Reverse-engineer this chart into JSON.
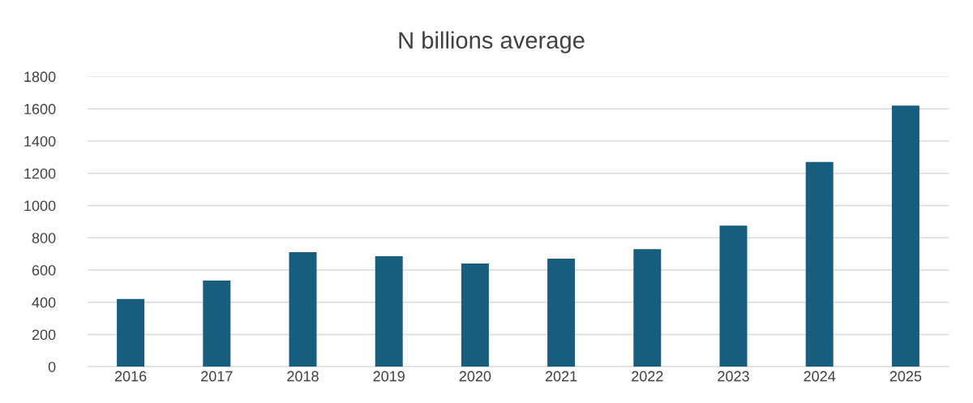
{
  "chart_data": {
    "type": "bar",
    "title": "N billions average",
    "categories": [
      "2016",
      "2017",
      "2018",
      "2019",
      "2020",
      "2021",
      "2022",
      "2023",
      "2024",
      "2025"
    ],
    "values": [
      420,
      535,
      710,
      685,
      640,
      670,
      730,
      875,
      1270,
      1620
    ],
    "color": "#175e7e",
    "ylim": [
      0,
      1800
    ],
    "yticks": [
      0,
      200,
      400,
      600,
      800,
      1000,
      1200,
      1400,
      1600,
      1800
    ],
    "grid": "y"
  }
}
